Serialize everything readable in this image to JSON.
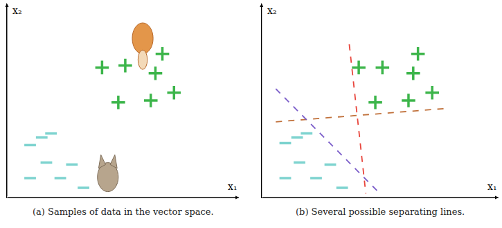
{
  "chart_data": [
    {
      "type": "scatter",
      "title": "(a) Samples of data in the vector space.",
      "xlabel": "x₁",
      "ylabel": "x₂",
      "xlim": [
        0,
        10
      ],
      "ylim": [
        0,
        10
      ],
      "xticks": [],
      "yticks": [],
      "tick_labels": false,
      "grid": false,
      "series": [
        {
          "type": "scatter",
          "marker": "plus",
          "color": "#3cb54a",
          "x": [
            4.1,
            5.1,
            6.7,
            6.4,
            4.8,
            6.2,
            7.2
          ],
          "y": [
            6.7,
            6.8,
            7.4,
            6.4,
            4.9,
            5.0,
            5.4
          ]
        },
        {
          "type": "scatter",
          "marker": "minus",
          "color": "#7dd3cf",
          "x": [
            1.5,
            1.9,
            1.0,
            1.7,
            2.8,
            1.0,
            2.3,
            3.3
          ],
          "y": [
            3.1,
            3.3,
            2.7,
            1.8,
            1.7,
            1.0,
            1.0,
            0.5
          ]
        }
      ]
    },
    {
      "type": "scatter",
      "title": "(b) Several possible separating lines.",
      "xlabel": "x₁",
      "ylabel": "x₂",
      "xlim": [
        0,
        10
      ],
      "ylim": [
        0,
        10
      ],
      "xticks": [],
      "yticks": [],
      "tick_labels": false,
      "grid": false,
      "series": [
        {
          "type": "scatter",
          "marker": "plus",
          "color": "#3cb54a",
          "x": [
            4.1,
            5.1,
            6.6,
            6.4,
            4.8,
            6.2,
            7.2
          ],
          "y": [
            6.7,
            6.7,
            7.4,
            6.4,
            4.9,
            5.0,
            5.4
          ]
        },
        {
          "type": "scatter",
          "marker": "minus",
          "color": "#7dd3cf",
          "x": [
            1.5,
            1.9,
            1.0,
            1.6,
            2.9,
            1.0,
            2.3,
            3.4
          ],
          "y": [
            3.1,
            3.3,
            2.8,
            1.8,
            1.7,
            1.0,
            1.0,
            0.5
          ]
        },
        {
          "type": "line",
          "line_style": "dashed",
          "color": "#e8453c",
          "x": [
            3.7,
            4.4
          ],
          "y": [
            7.9,
            0.2
          ]
        },
        {
          "type": "line",
          "line_style": "dashed",
          "color": "#c0703a",
          "x": [
            0.6,
            7.9
          ],
          "y": [
            3.9,
            4.6
          ]
        },
        {
          "type": "line",
          "line_style": "dashed",
          "color": "#7a5cc9",
          "x": [
            0.6,
            5.0
          ],
          "y": [
            5.6,
            0.2
          ]
        }
      ]
    }
  ]
}
